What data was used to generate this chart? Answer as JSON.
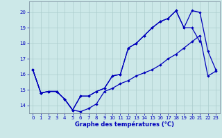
{
  "xlabel": "Graphe des températures (°C)",
  "x_ticks": [
    0,
    1,
    2,
    3,
    4,
    5,
    6,
    7,
    8,
    9,
    10,
    11,
    12,
    13,
    14,
    15,
    16,
    17,
    18,
    19,
    20,
    21,
    22,
    23
  ],
  "ylim": [
    13.5,
    20.7
  ],
  "y_ticks": [
    14,
    15,
    16,
    17,
    18,
    19,
    20
  ],
  "background_color": "#cce8e8",
  "grid_color": "#aacccc",
  "line_color": "#0000bb",
  "line1_x": [
    0,
    1,
    2,
    3,
    4,
    5,
    6,
    7,
    8,
    9,
    10,
    11,
    12,
    13,
    14,
    15,
    16,
    17,
    18,
    19,
    20,
    21,
    22,
    23
  ],
  "line1_y": [
    16.3,
    14.8,
    14.9,
    14.9,
    14.4,
    13.7,
    13.6,
    13.8,
    14.1,
    14.9,
    15.1,
    15.4,
    15.6,
    15.9,
    16.1,
    16.3,
    16.6,
    17.0,
    17.3,
    17.7,
    18.1,
    18.5,
    15.9,
    16.2
  ],
  "line2_x": [
    0,
    1,
    2,
    3,
    4,
    5,
    6,
    7,
    8,
    9,
    10,
    11,
    12,
    13,
    14,
    15,
    16,
    17,
    18,
    19,
    20,
    21
  ],
  "line2_y": [
    16.3,
    14.8,
    14.9,
    14.9,
    14.4,
    13.7,
    14.6,
    14.6,
    14.9,
    15.1,
    15.9,
    16.0,
    17.7,
    18.0,
    18.5,
    19.0,
    19.4,
    19.6,
    20.1,
    19.0,
    19.0,
    18.1
  ],
  "line3_x": [
    0,
    1,
    2,
    3,
    4,
    5,
    6,
    7,
    8,
    9,
    10,
    11,
    12,
    13,
    14,
    15,
    16,
    17,
    18,
    19,
    20,
    21,
    22,
    23
  ],
  "line3_y": [
    16.3,
    14.8,
    14.9,
    14.9,
    14.4,
    13.7,
    14.6,
    14.6,
    14.9,
    15.1,
    15.9,
    16.0,
    17.7,
    18.0,
    18.5,
    19.0,
    19.4,
    19.6,
    20.1,
    19.0,
    20.1,
    20.0,
    17.5,
    16.3
  ]
}
